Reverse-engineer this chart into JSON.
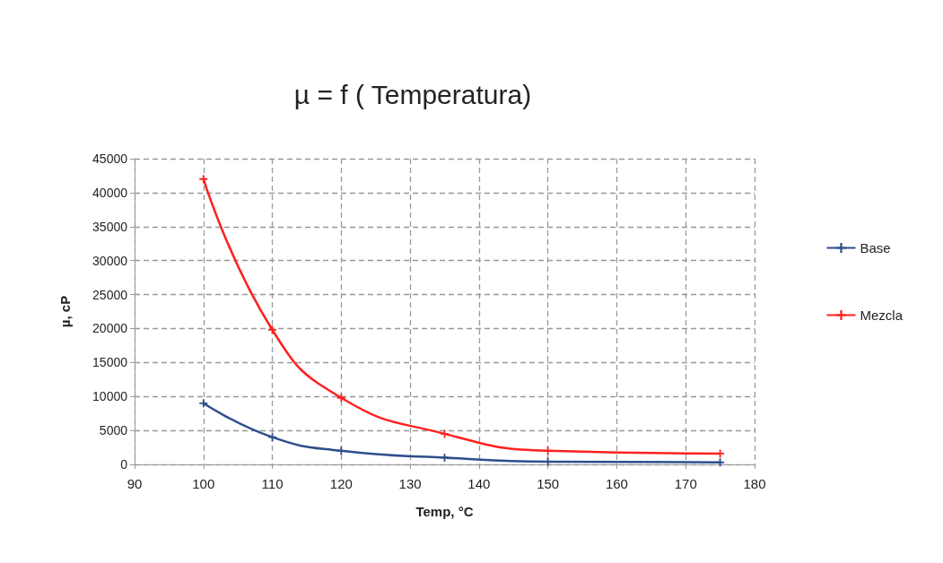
{
  "chart_data": {
    "type": "line",
    "title": "µ = f ( Temperatura)",
    "xlabel": "Temp, °C",
    "ylabel": "µ, cP",
    "x": [
      100,
      110,
      120,
      135,
      150,
      175
    ],
    "series": [
      {
        "name": "Base",
        "color": "#2e4e8c",
        "values": [
          9000,
          4000,
          2000,
          1000,
          400,
          300
        ]
      },
      {
        "name": "Mezcla",
        "color": "#ff2020",
        "values": [
          42000,
          19800,
          9800,
          4500,
          2000,
          1600
        ]
      }
    ],
    "xlim": [
      90,
      180
    ],
    "xticks": [
      90,
      100,
      110,
      120,
      130,
      140,
      150,
      160,
      170,
      180
    ],
    "ylim": [
      0,
      45000
    ],
    "yticks": [
      0,
      5000,
      10000,
      15000,
      20000,
      25000,
      30000,
      35000,
      40000,
      45000
    ],
    "grid": true,
    "legend": "right",
    "marker": "cross",
    "line_style": "solid"
  }
}
